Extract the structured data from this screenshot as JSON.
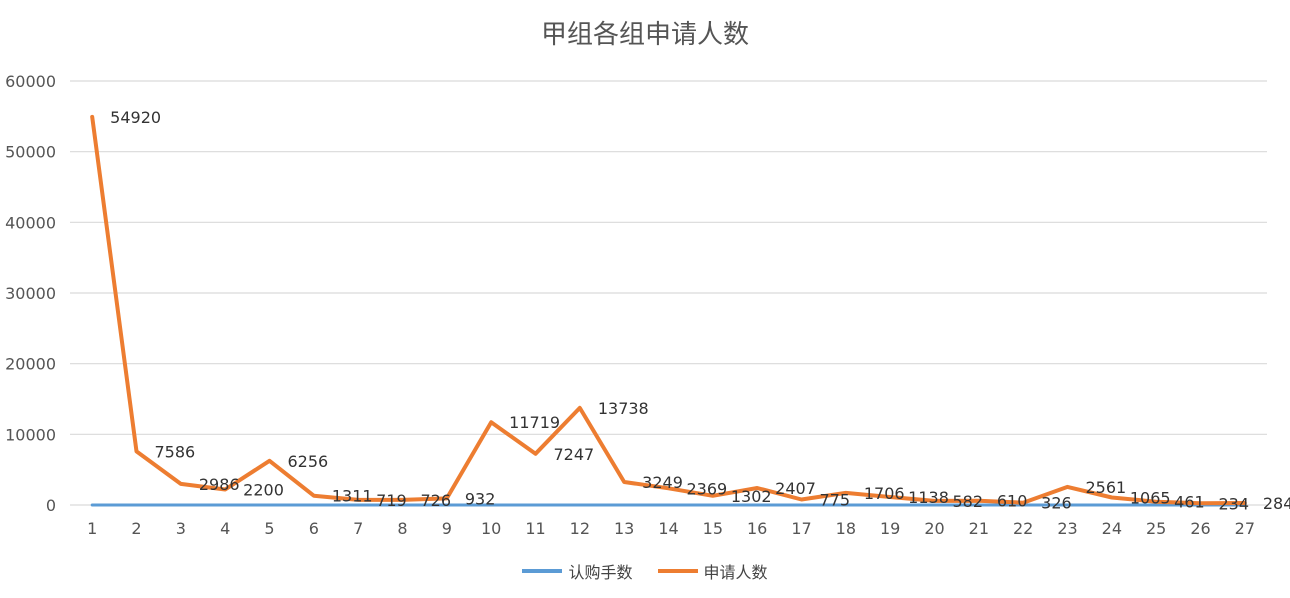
{
  "chart_data": {
    "type": "line",
    "title": "甲组各组申请人数",
    "categories": [
      "1",
      "2",
      "3",
      "4",
      "5",
      "6",
      "7",
      "8",
      "9",
      "10",
      "11",
      "12",
      "13",
      "14",
      "15",
      "16",
      "17",
      "18",
      "19",
      "20",
      "21",
      "22",
      "23",
      "24",
      "25",
      "26",
      "27"
    ],
    "ylim": [
      0,
      60000
    ],
    "yticks": [
      0,
      10000,
      20000,
      30000,
      40000,
      50000,
      60000
    ],
    "grid": true,
    "legend_position": "bottom",
    "series": [
      {
        "name": "认购手数",
        "color": "#5b9bd5",
        "values": [
          0,
          0,
          0,
          0,
          0,
          0,
          0,
          0,
          0,
          0,
          0,
          0,
          0,
          0,
          0,
          0,
          0,
          0,
          0,
          0,
          0,
          0,
          0,
          0,
          0,
          0,
          0
        ]
      },
      {
        "name": "申请人数",
        "color": "#ed7d31",
        "values": [
          54920,
          7586,
          2986,
          2200,
          6256,
          1311,
          719,
          726,
          932,
          11719,
          7247,
          13738,
          3249,
          2369,
          1302,
          2407,
          775,
          1706,
          1138,
          582,
          610,
          326,
          2561,
          1065,
          461,
          234,
          284
        ],
        "data_labels": [
          "54920",
          "7586",
          "2986",
          "2200",
          "6256",
          "1311",
          "719",
          "726",
          "932",
          "11719",
          "7247",
          "13738",
          "3249",
          "2369",
          "1302",
          "2407",
          "775",
          "1706",
          "1138",
          "582",
          "610",
          "326",
          "2561",
          "1065",
          "461",
          "234",
          "284"
        ]
      }
    ]
  }
}
